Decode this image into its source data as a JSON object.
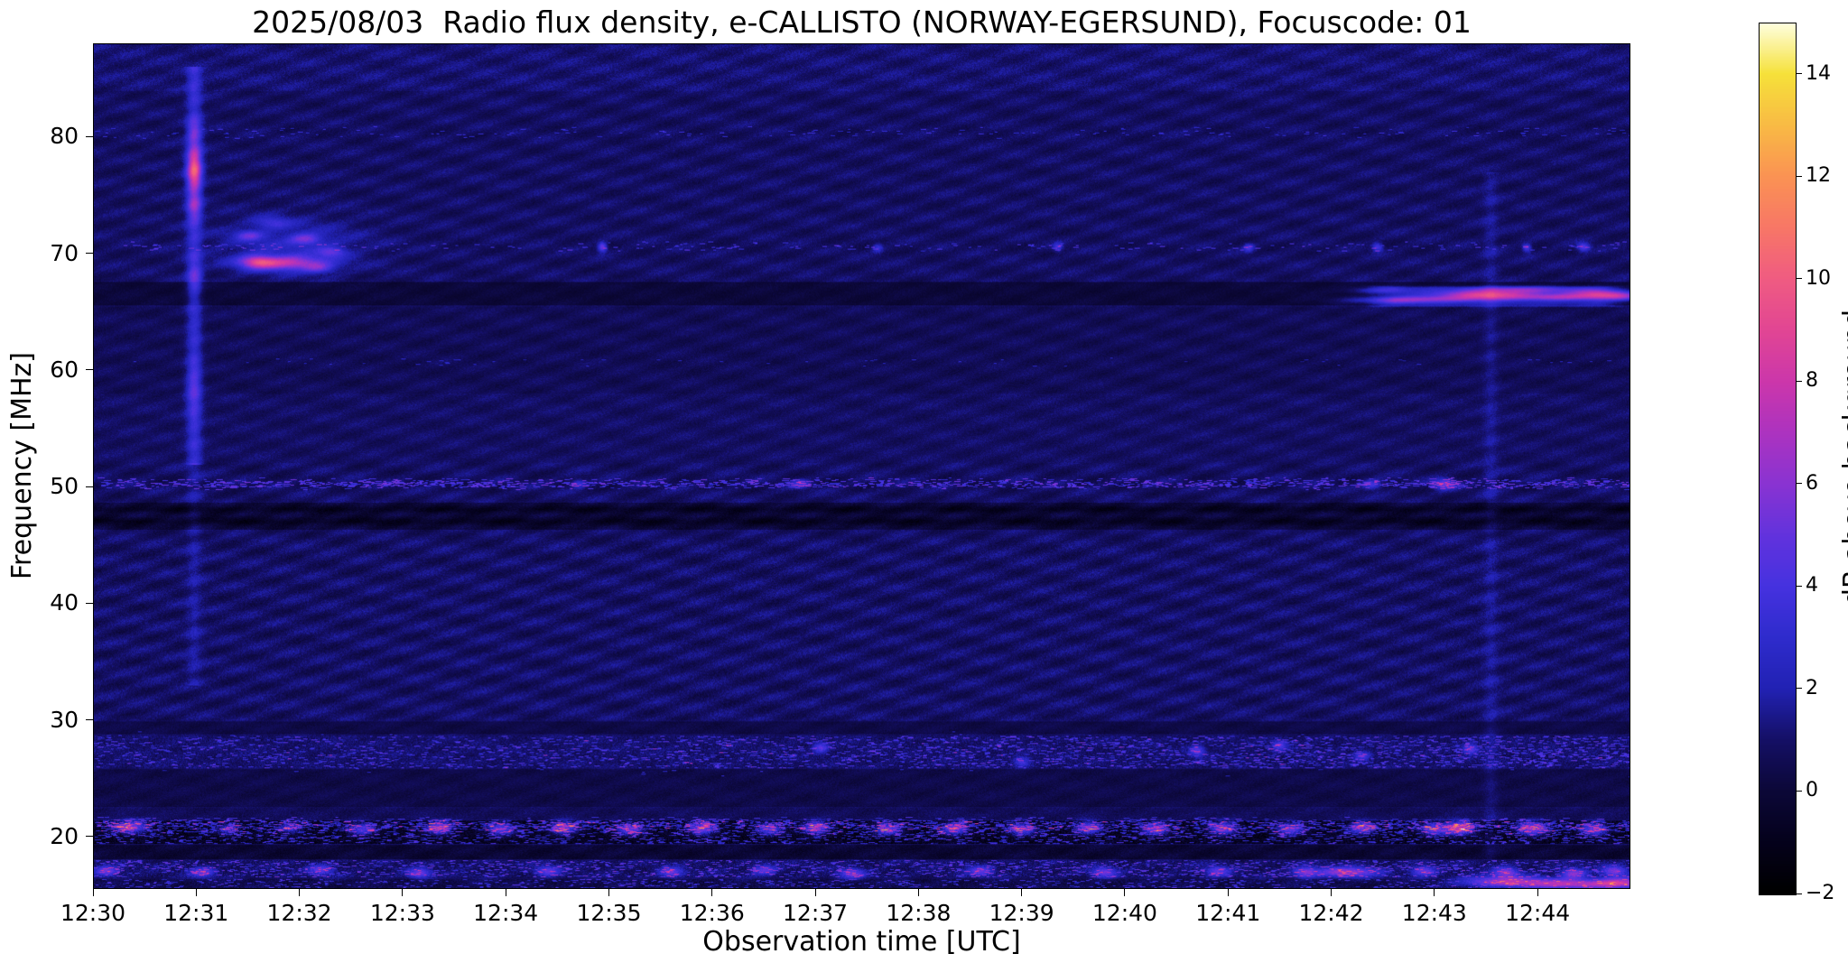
{
  "chart_data": {
    "type": "heatmap",
    "title": "2025/08/03  Radio flux density, e-CALLISTO (NORWAY-EGERSUND), Focuscode: 01",
    "xlabel": "Observation time [UTC]",
    "ylabel": "Frequency [MHz]",
    "colorbar_label": "dB above background",
    "x_range_minutes": [
      0,
      14.9
    ],
    "x_ticks": [
      {
        "t": 0,
        "label": "12:30"
      },
      {
        "t": 1,
        "label": "12:31"
      },
      {
        "t": 2,
        "label": "12:32"
      },
      {
        "t": 3,
        "label": "12:33"
      },
      {
        "t": 4,
        "label": "12:34"
      },
      {
        "t": 5,
        "label": "12:35"
      },
      {
        "t": 6,
        "label": "12:36"
      },
      {
        "t": 7,
        "label": "12:37"
      },
      {
        "t": 8,
        "label": "12:38"
      },
      {
        "t": 9,
        "label": "12:39"
      },
      {
        "t": 10,
        "label": "12:40"
      },
      {
        "t": 11,
        "label": "12:41"
      },
      {
        "t": 12,
        "label": "12:42"
      },
      {
        "t": 13,
        "label": "12:43"
      },
      {
        "t": 14,
        "label": "12:44"
      }
    ],
    "y_range_mhz": [
      15.5,
      88
    ],
    "y_ticks": [
      {
        "f": 20,
        "label": "20"
      },
      {
        "f": 30,
        "label": "30"
      },
      {
        "f": 40,
        "label": "40"
      },
      {
        "f": 50,
        "label": "50"
      },
      {
        "f": 60,
        "label": "60"
      },
      {
        "f": 70,
        "label": "70"
      },
      {
        "f": 80,
        "label": "80"
      }
    ],
    "c_range_db": [
      -2,
      15
    ],
    "c_ticks": [
      {
        "v": -2,
        "label": "−2"
      },
      {
        "v": 0,
        "label": "0"
      },
      {
        "v": 2,
        "label": "2"
      },
      {
        "v": 4,
        "label": "4"
      },
      {
        "v": 6,
        "label": "6"
      },
      {
        "v": 8,
        "label": "8"
      },
      {
        "v": 10,
        "label": "10"
      },
      {
        "v": 12,
        "label": "12"
      },
      {
        "v": 14,
        "label": "14"
      }
    ],
    "colormap": [
      {
        "v": -2,
        "c": "#000000"
      },
      {
        "v": -1,
        "c": "#05021c"
      },
      {
        "v": 0,
        "c": "#0c0838"
      },
      {
        "v": 1,
        "c": "#151066"
      },
      {
        "v": 2,
        "c": "#2222b4"
      },
      {
        "v": 3,
        "c": "#2f2ccd"
      },
      {
        "v": 4,
        "c": "#4632e0"
      },
      {
        "v": 5,
        "c": "#6333dd"
      },
      {
        "v": 6,
        "c": "#8a33d2"
      },
      {
        "v": 7,
        "c": "#ad33c0"
      },
      {
        "v": 8,
        "c": "#cc37ab"
      },
      {
        "v": 9,
        "c": "#e24694"
      },
      {
        "v": 10,
        "c": "#f05c82"
      },
      {
        "v": 11,
        "c": "#f87767"
      },
      {
        "v": 12,
        "c": "#fb9354"
      },
      {
        "v": 13,
        "c": "#f9bb45"
      },
      {
        "v": 14,
        "c": "#f6e13a"
      },
      {
        "v": 15,
        "c": "#ffffe0"
      }
    ],
    "background": {
      "base_db": 0.9,
      "noise_db": 0.5,
      "ripple_amp_db": 0.16
    },
    "features": {
      "hbands": [
        {
          "f": [
            84,
            88
          ],
          "dv": 0.25,
          "noise": 0.15
        },
        {
          "f": [
            65.6,
            67.6
          ],
          "dv": -0.85,
          "noise": -0.15
        },
        {
          "f": [
            58,
            65.5
          ],
          "dv": -0.2,
          "noise": -0.05
        },
        {
          "f": [
            46.3,
            48.6
          ],
          "dv": -0.75,
          "noise": 0.1
        },
        {
          "f": [
            29.9,
            45.5
          ],
          "dv": 0.05,
          "noise": 0.15
        },
        {
          "f": [
            28.7,
            29.8
          ],
          "dv": -0.55,
          "noise": -0.1
        },
        {
          "f": [
            25.8,
            28.6
          ],
          "dv": 0.15,
          "noise": 0.35,
          "speckle": {
            "density": 0.03,
            "v": 2.0,
            "vr": 1.6,
            "tgrad": [
              0.5,
              1.6
            ],
            "len": [
              2,
              7
            ]
          }
        },
        {
          "f": [
            22.5,
            25.7
          ],
          "dv": -0.5,
          "noise": -0.05
        },
        {
          "f": [
            21.4,
            22.4
          ],
          "dv": -0.2,
          "noise": 0.1
        },
        {
          "f": [
            19.3,
            21.3
          ],
          "dv": -1.5,
          "noise": 0.9,
          "speckle": {
            "density": 0.05,
            "v": 2.2,
            "vr": 2.6,
            "len": [
              2,
              8
            ]
          }
        },
        {
          "f": [
            18.0,
            19.2
          ],
          "dv": -1.0,
          "noise": 0.1
        },
        {
          "f": [
            16.4,
            17.9
          ],
          "dv": 0.1,
          "noise": 0.5,
          "speckle": {
            "density": 0.045,
            "v": 2.0,
            "vr": 2.2,
            "len": [
              2,
              6
            ]
          }
        },
        {
          "f": [
            15.5,
            16.3
          ],
          "dv": -0.4,
          "noise": 0.4,
          "speckle": {
            "density": 0.035,
            "v": 1.8,
            "vr": 2.0,
            "len": [
              2,
              6
            ]
          }
        }
      ],
      "hlines_solid": [
        {
          "f": 47.0,
          "sigma": 0.25,
          "dv": -0.9
        },
        {
          "f": 48.05,
          "sigma": 0.22,
          "dv": -0.9
        }
      ],
      "hlines_speckle": [
        {
          "f": 50.25,
          "sigma": 0.22,
          "density": 0.12,
          "v": 2.2,
          "vr": 2.2,
          "len": [
            2,
            8
          ]
        },
        {
          "f": 70.6,
          "sigma": 0.2,
          "density": 0.02,
          "v": 1.8,
          "vr": 1.8,
          "len": [
            2,
            6
          ]
        },
        {
          "f": 80.4,
          "sigma": 0.22,
          "density": 0.015,
          "v": 1.5,
          "vr": 1.2,
          "len": [
            2,
            6
          ]
        },
        {
          "f": 60.7,
          "sigma": 0.18,
          "density": 0.006,
          "v": 1.2,
          "vr": 0.8,
          "len": [
            2,
            5
          ]
        },
        {
          "f": 20.9,
          "sigma": 0.3,
          "density": 0.1,
          "v": 1.8,
          "vr": 2.0,
          "len": [
            2,
            8
          ]
        },
        {
          "f": 27.0,
          "sigma": 0.8,
          "density": 0.01,
          "v": 1.6,
          "vr": 1.2,
          "len": [
            2,
            5
          ]
        }
      ],
      "ripple_boosts": [
        {
          "f": [
            29.9,
            52
          ],
          "amount": 1.3
        },
        {
          "f": [
            52,
            65.4
          ],
          "amount": 0.5
        },
        {
          "f": [
            67.6,
            88
          ],
          "amount": 0.9
        },
        {
          "f": [
            15.5,
            19.2
          ],
          "amount": 0.6
        }
      ],
      "vlines": [
        {
          "t": 0.97,
          "f": [
            52,
            86
          ],
          "v": 2.4,
          "w": 0.05
        },
        {
          "t": 0.97,
          "f": [
            33,
            52
          ],
          "v": 0.9,
          "w": 0.05
        },
        {
          "t": 13.55,
          "f": [
            18,
            77
          ],
          "v": 0.75,
          "w": 0.05
        }
      ],
      "band_patches": [
        {
          "t": [
            12.32,
            14.9
          ],
          "f": [
            65.4,
            67.35
          ],
          "v": 2.0,
          "tfade": 0.3,
          "ffade": 0.25
        }
      ],
      "blobs": [
        [
          0.97,
          77.3,
          0.05,
          1.3,
          7.0
        ],
        [
          0.97,
          74.0,
          0.05,
          0.8,
          3.0
        ],
        [
          0.97,
          80.6,
          0.05,
          0.7,
          2.2
        ],
        [
          0.965,
          58.5,
          0.05,
          1.5,
          1.6
        ],
        [
          0.975,
          68.0,
          0.05,
          0.8,
          2.0
        ],
        [
          1.9,
          70.8,
          0.5,
          1.6,
          1.5
        ],
        [
          1.85,
          69.25,
          0.26,
          0.42,
          6.2
        ],
        [
          1.58,
          69.35,
          0.11,
          0.38,
          4.6
        ],
        [
          1.5,
          71.6,
          0.09,
          0.3,
          3.2
        ],
        [
          2.05,
          71.3,
          0.1,
          0.32,
          3.6
        ],
        [
          2.3,
          70.2,
          0.09,
          0.3,
          3.2
        ],
        [
          1.72,
          72.7,
          0.12,
          0.35,
          2.2
        ],
        [
          2.18,
          68.8,
          0.1,
          0.3,
          2.8
        ],
        [
          4.93,
          70.6,
          0.03,
          0.28,
          4.6
        ],
        [
          7.6,
          70.55,
          0.035,
          0.25,
          2.6
        ],
        [
          9.35,
          70.6,
          0.03,
          0.25,
          2.8
        ],
        [
          11.2,
          70.55,
          0.035,
          0.25,
          3.0
        ],
        [
          12.45,
          70.6,
          0.035,
          0.25,
          3.4
        ],
        [
          13.9,
          70.55,
          0.03,
          0.25,
          3.4
        ],
        [
          14.45,
          70.6,
          0.04,
          0.25,
          3.8
        ],
        [
          12.62,
          66.0,
          0.3,
          0.2,
          2.8
        ],
        [
          13.0,
          66.15,
          0.45,
          0.18,
          2.6
        ],
        [
          13.52,
          66.5,
          0.32,
          0.28,
          6.8
        ],
        [
          13.82,
          66.95,
          0.35,
          0.2,
          3.4
        ],
        [
          14.2,
          66.3,
          0.28,
          0.2,
          3.8
        ],
        [
          14.6,
          66.6,
          0.22,
          0.3,
          5.6
        ],
        [
          14.85,
          66.35,
          0.15,
          0.25,
          4.2
        ],
        [
          12.45,
          66.9,
          0.2,
          0.2,
          2.4
        ],
        [
          13.1,
          50.25,
          0.07,
          0.3,
          4.4
        ],
        [
          12.4,
          50.2,
          0.06,
          0.28,
          3.2
        ],
        [
          6.85,
          50.25,
          0.06,
          0.25,
          2.8
        ],
        [
          4.7,
          50.3,
          0.05,
          0.25,
          2.6
        ],
        [
          7.05,
          27.6,
          0.05,
          0.3,
          3.6
        ],
        [
          10.7,
          27.3,
          0.05,
          0.3,
          3.8
        ],
        [
          11.5,
          27.8,
          0.05,
          0.3,
          3.2
        ],
        [
          13.35,
          27.5,
          0.05,
          0.3,
          4.0
        ],
        [
          9.0,
          26.4,
          0.05,
          0.3,
          3.0
        ],
        [
          12.3,
          26.9,
          0.05,
          0.28,
          3.2
        ],
        [
          0.35,
          20.8,
          0.12,
          0.4,
          6.0
        ],
        [
          1.3,
          20.6,
          0.08,
          0.35,
          3.5
        ],
        [
          1.9,
          20.7,
          0.08,
          0.35,
          4.0
        ],
        [
          2.6,
          20.6,
          0.09,
          0.38,
          5.0
        ],
        [
          3.35,
          20.7,
          0.09,
          0.38,
          6.5
        ],
        [
          3.95,
          20.6,
          0.09,
          0.38,
          5.5
        ],
        [
          4.55,
          20.7,
          0.09,
          0.38,
          6.0
        ],
        [
          5.2,
          20.6,
          0.09,
          0.38,
          5.2
        ],
        [
          5.9,
          20.65,
          0.09,
          0.38,
          6.2
        ],
        [
          6.55,
          20.6,
          0.09,
          0.38,
          5.0
        ],
        [
          7.0,
          20.7,
          0.09,
          0.38,
          6.0
        ],
        [
          7.7,
          20.6,
          0.09,
          0.38,
          5.6
        ],
        [
          8.35,
          20.65,
          0.09,
          0.38,
          6.2
        ],
        [
          9.0,
          20.6,
          0.09,
          0.38,
          5.4
        ],
        [
          9.65,
          20.7,
          0.09,
          0.38,
          6.0
        ],
        [
          10.3,
          20.6,
          0.09,
          0.38,
          5.8
        ],
        [
          10.95,
          20.65,
          0.09,
          0.38,
          6.2
        ],
        [
          11.6,
          20.6,
          0.09,
          0.38,
          5.4
        ],
        [
          12.3,
          20.7,
          0.09,
          0.38,
          6.0
        ],
        [
          13.0,
          20.6,
          0.09,
          0.38,
          5.6
        ],
        [
          13.25,
          20.7,
          0.1,
          0.4,
          8.0
        ],
        [
          13.95,
          20.65,
          0.1,
          0.4,
          7.0
        ],
        [
          14.55,
          20.6,
          0.09,
          0.38,
          6.0
        ],
        [
          0.12,
          17.0,
          0.08,
          0.3,
          4.5
        ],
        [
          1.05,
          16.9,
          0.08,
          0.3,
          4.0
        ],
        [
          2.2,
          17.1,
          0.08,
          0.3,
          3.8
        ],
        [
          3.15,
          16.8,
          0.08,
          0.3,
          4.2
        ],
        [
          4.4,
          17.0,
          0.08,
          0.3,
          3.8
        ],
        [
          5.6,
          16.9,
          0.08,
          0.3,
          4.0
        ],
        [
          6.5,
          17.1,
          0.08,
          0.3,
          3.8
        ],
        [
          7.35,
          16.8,
          0.08,
          0.3,
          4.2
        ],
        [
          8.6,
          17.0,
          0.08,
          0.3,
          3.8
        ],
        [
          9.8,
          16.9,
          0.08,
          0.3,
          4.2
        ],
        [
          10.9,
          17.0,
          0.08,
          0.3,
          3.8
        ],
        [
          11.75,
          16.9,
          0.08,
          0.3,
          4.6
        ],
        [
          12.15,
          16.9,
          0.2,
          0.3,
          5.5
        ],
        [
          12.9,
          17.0,
          0.08,
          0.3,
          4.2
        ],
        [
          13.7,
          16.9,
          0.08,
          0.3,
          5.0
        ],
        [
          14.35,
          16.8,
          0.08,
          0.3,
          5.2
        ],
        [
          14.75,
          17.0,
          0.08,
          0.3,
          4.8
        ],
        [
          13.65,
          16.1,
          0.28,
          0.3,
          5.5
        ],
        [
          14.35,
          15.9,
          0.4,
          0.3,
          6.5
        ],
        [
          14.8,
          16.0,
          0.15,
          0.3,
          5.0
        ]
      ]
    }
  }
}
